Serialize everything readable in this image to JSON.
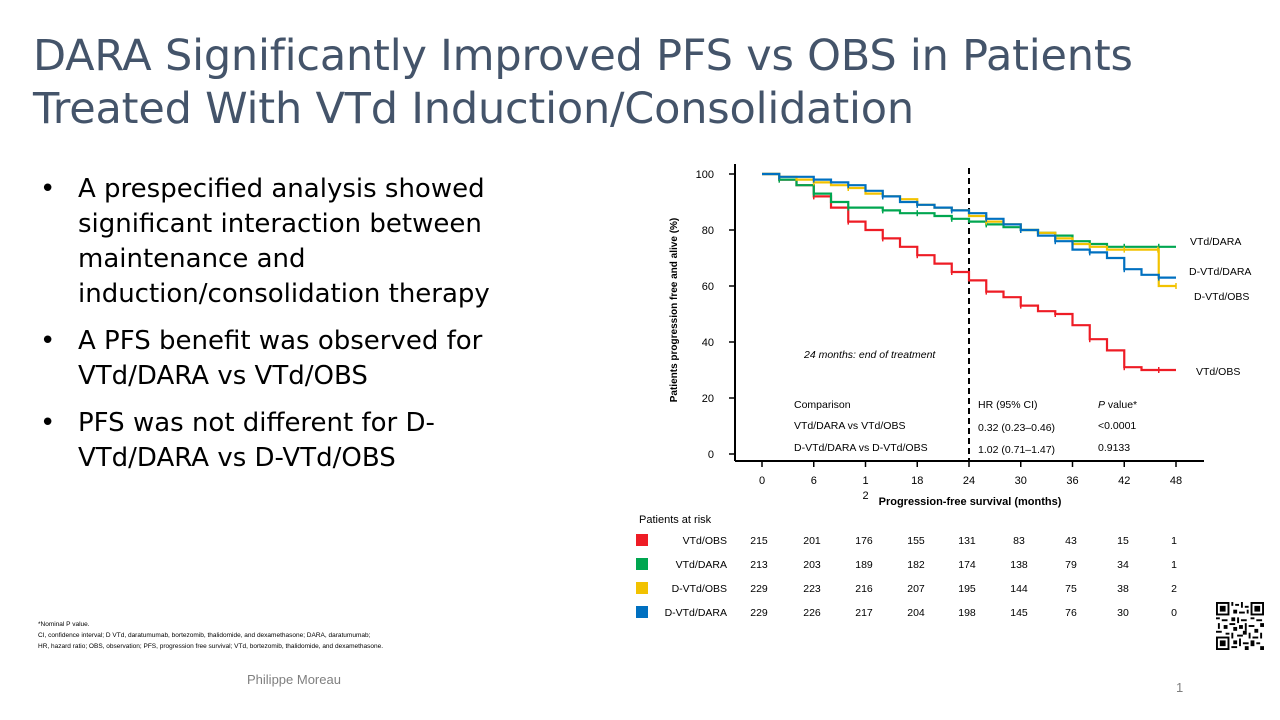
{
  "slide": {
    "title_line1": "DARA Significantly Improved PFS vs OBS in Patients",
    "title_line2": "Treated With VTd Induction/Consolidation",
    "bullets": [
      "A prespecified analysis showed significant interaction between maintenance and induction/consolidation therapy",
      "A PFS benefit was observed for VTd/DARA vs VTd/OBS",
      "PFS was not different for D-VTd/DARA vs D-VTd/OBS"
    ],
    "footnotes": [
      "*Nominal P value.",
      "CI, confidence interval; D VTd, daratumumab, bortezomib, thalidomide, and dexamethasone; DARA, daratumumab;",
      "HR, hazard ratio; OBS, observation; PFS, progression free survival; VTd, bortezomib, thalidomide, and dexamethasone."
    ],
    "presenter": "Philippe Moreau",
    "page_number": "1"
  },
  "chart_data": {
    "type": "line",
    "xlabel": "Progression-free survival (months)",
    "ylabel": "Patients progression free and alive (%)",
    "xlim": [
      0,
      48
    ],
    "ylim": [
      0,
      100
    ],
    "x_ticks": [
      "0",
      "6",
      "1\n2",
      "18",
      "24",
      "30",
      "36",
      "42",
      "48"
    ],
    "y_ticks": [
      "0",
      "20",
      "40",
      "60",
      "80",
      "100"
    ],
    "vline_x": 24,
    "annotation": "24 months: end of treatment",
    "series": [
      {
        "name": "VTd/OBS",
        "color": "#ee1c25",
        "x": [
          0,
          2,
          4,
          6,
          8,
          10,
          12,
          14,
          16,
          18,
          20,
          22,
          24,
          26,
          28,
          30,
          32,
          34,
          36,
          38,
          40,
          42,
          44,
          46,
          48
        ],
        "y": [
          100,
          98,
          96,
          92,
          88,
          83,
          80,
          77,
          74,
          71,
          68,
          65,
          62,
          58,
          56,
          53,
          51,
          50,
          46,
          41,
          37,
          31,
          30,
          30,
          30
        ]
      },
      {
        "name": "VTd/DARA",
        "color": "#00a650",
        "x": [
          0,
          2,
          4,
          6,
          8,
          10,
          12,
          14,
          16,
          18,
          20,
          22,
          24,
          26,
          28,
          30,
          32,
          34,
          36,
          38,
          40,
          42,
          44,
          46,
          48
        ],
        "y": [
          100,
          98,
          96,
          93,
          90,
          88,
          88,
          87,
          86,
          86,
          85,
          84,
          83,
          82,
          81,
          80,
          79,
          78,
          76,
          75,
          74,
          74,
          74,
          74,
          74
        ]
      },
      {
        "name": "D-VTd/OBS",
        "color": "#f2c200",
        "x": [
          0,
          2,
          4,
          6,
          8,
          10,
          12,
          14,
          16,
          18,
          20,
          22,
          24,
          26,
          28,
          30,
          32,
          34,
          36,
          38,
          40,
          42,
          44,
          45.9,
          46,
          48
        ],
        "y": [
          100,
          99,
          98,
          97,
          96,
          95,
          93,
          92,
          91,
          89,
          88,
          87,
          85,
          83,
          82,
          80,
          79,
          77,
          75,
          74,
          73,
          73,
          73,
          73,
          60,
          60
        ]
      },
      {
        "name": "D-VTd/DARA",
        "color": "#0070c0",
        "x": [
          0,
          2,
          4,
          6,
          8,
          10,
          12,
          14,
          16,
          18,
          20,
          22,
          24,
          26,
          28,
          30,
          32,
          34,
          36,
          38,
          40,
          42,
          44,
          46,
          48
        ],
        "y": [
          100,
          99,
          99,
          98,
          97,
          96,
          94,
          92,
          90,
          89,
          88,
          87,
          86,
          84,
          82,
          80,
          78,
          76,
          73,
          72,
          70,
          66,
          64,
          63,
          63
        ]
      }
    ],
    "series_labels": [
      "VTd/DARA",
      "D-VTd/DARA",
      "D-VTd/OBS",
      "VTd/OBS"
    ],
    "comparison_table": {
      "headers": [
        "Comparison",
        "HR (95% CI)",
        "P value*"
      ],
      "rows": [
        [
          "VTd/DARA  vs VTd/OBS",
          "0.32 (0.23–0.46)",
          "<0.0001"
        ],
        [
          "D-VTd/DARA  vs D-VTd/OBS",
          "1.02 (0.71–1.47)",
          "0.9133"
        ]
      ]
    },
    "at_risk": {
      "title": "Patients at risk",
      "rows": [
        {
          "label": "VTd/OBS",
          "color": "#ee1c25",
          "values": [
            "215",
            "201",
            "176",
            "155",
            "131",
            "83",
            "43",
            "15",
            "1"
          ]
        },
        {
          "label": "VTd/DARA",
          "color": "#00a650",
          "values": [
            "213",
            "203",
            "189",
            "182",
            "174",
            "138",
            "79",
            "34",
            "1"
          ]
        },
        {
          "label": "D-VTd/OBS",
          "color": "#f2c200",
          "values": [
            "229",
            "223",
            "216",
            "207",
            "195",
            "144",
            "75",
            "38",
            "2"
          ]
        },
        {
          "label": "D-VTd/DARA",
          "color": "#0070c0",
          "values": [
            "229",
            "226",
            "217",
            "204",
            "198",
            "145",
            "76",
            "30",
            "0"
          ]
        }
      ]
    }
  }
}
